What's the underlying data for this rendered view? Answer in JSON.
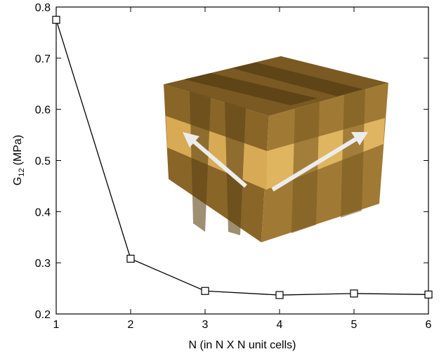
{
  "chart_data": {
    "type": "line",
    "ylabel": {
      "main": "G",
      "sub": "12",
      "rest": "(MPa)"
    },
    "xlabel": "N (in N X N unit cells)",
    "x": [
      1,
      2,
      3,
      4,
      5,
      6
    ],
    "series": [
      {
        "color": "#000000",
        "values": [
          0.775,
          0.308,
          0.245,
          0.237,
          0.24,
          0.238
        ]
      }
    ],
    "xlim": [
      1,
      6
    ],
    "xticks": [
      1,
      2,
      3,
      4,
      5,
      6
    ],
    "ylim": [
      0.2,
      0.8
    ],
    "yticks": [
      0.2,
      0.3,
      0.4,
      0.5,
      0.6,
      0.7,
      0.8
    ],
    "marker": "square"
  }
}
